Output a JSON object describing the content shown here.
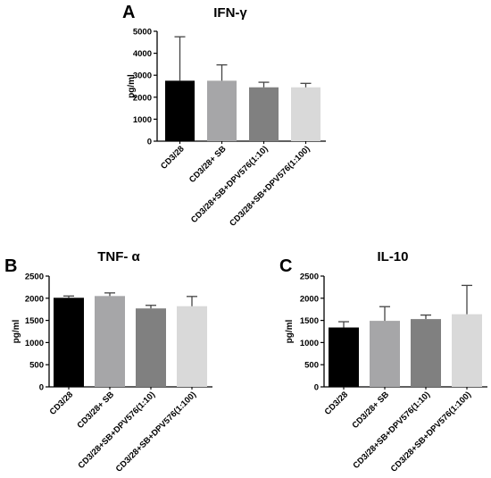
{
  "figure": {
    "colors": {
      "bar_fills": [
        "#000000",
        "#a6a6a8",
        "#808080",
        "#d9d9d9"
      ],
      "error_bar": "#444444",
      "axis": "#000000"
    }
  },
  "chart_data": [
    {
      "type": "bar",
      "panel": "A",
      "title": "IFN-γ",
      "xlabel": "",
      "ylabel": "pg/ml",
      "ylim": [
        0,
        5000
      ],
      "yticks": [
        0,
        1000,
        2000,
        3000,
        4000,
        5000
      ],
      "categories": [
        "CD3/28",
        "CD3/28+ SB",
        "CD3/28+SB+DPV576(1:10)",
        "CD3/28+SB+DPV576(1:100)"
      ],
      "values": [
        2750,
        2750,
        2450,
        2450
      ],
      "errors": [
        2000,
        720,
        230,
        180
      ]
    },
    {
      "type": "bar",
      "panel": "B",
      "title": "TNF- α",
      "xlabel": "",
      "ylabel": "pg/ml",
      "ylim": [
        0,
        2500
      ],
      "yticks": [
        0,
        500,
        1000,
        1500,
        2000,
        2500
      ],
      "categories": [
        "CD3/28",
        "CD3/28+ SB",
        "CD3/28+SB+DPV576(1:10)",
        "CD3/28+SB+DPV576(1:100)"
      ],
      "values": [
        2010,
        2050,
        1770,
        1820
      ],
      "errors": [
        40,
        70,
        70,
        220
      ]
    },
    {
      "type": "bar",
      "panel": "C",
      "title": "IL-10",
      "xlabel": "",
      "ylabel": "pg/ml",
      "ylim": [
        0,
        2500
      ],
      "yticks": [
        0,
        500,
        1000,
        1500,
        2000,
        2500
      ],
      "categories": [
        "CD3/28",
        "CD3/28+ SB",
        "CD3/28+SB+DPV576(1:10)",
        "CD3/28+SB+DPV576(1:100)"
      ],
      "values": [
        1340,
        1490,
        1530,
        1640
      ],
      "errors": [
        130,
        320,
        90,
        650
      ]
    }
  ]
}
